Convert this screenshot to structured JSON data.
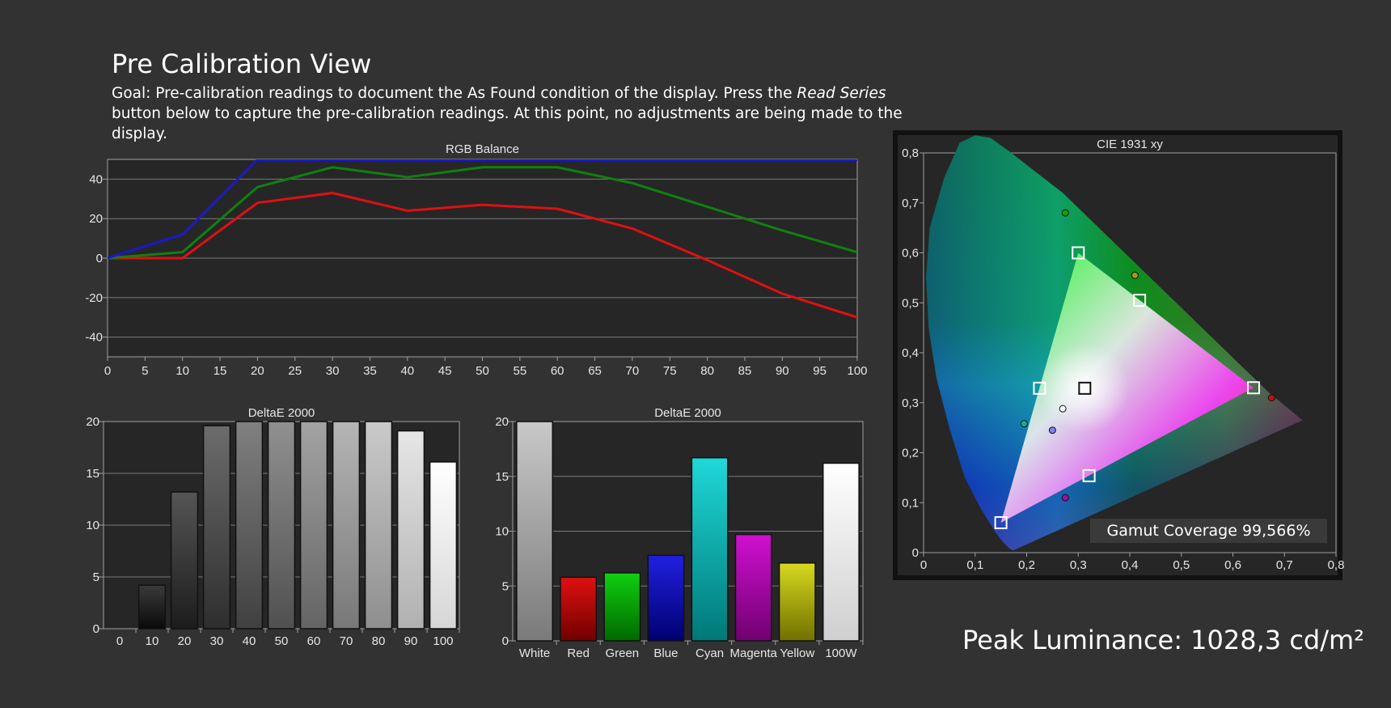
{
  "header": {
    "title": "Pre Calibration View",
    "goal_prefix": "Goal: Pre-calibration readings to document the As Found condition of the display. Press the ",
    "goal_italic": "Read Series",
    "goal_suffix": " button below to capture the pre-calibration readings. At this point, no adjustments are being made to the display."
  },
  "peak_luminance": "Peak Luminance: 1028,3 cd/m²",
  "gamut_coverage": "Gamut Coverage 99,566%",
  "colors": {
    "background": "#323232",
    "plot_bg": "#262626",
    "red": "#e01010",
    "green": "#108010",
    "blue": "#1818d0"
  },
  "chart_data": [
    {
      "id": "rgb",
      "type": "line",
      "title": "RGB Balance",
      "x": [
        0,
        10,
        20,
        30,
        40,
        50,
        60,
        70,
        80,
        90,
        100
      ],
      "xticks": [
        "0",
        "5",
        "10",
        "15",
        "20",
        "25",
        "30",
        "35",
        "40",
        "45",
        "50",
        "55",
        "60",
        "65",
        "70",
        "75",
        "80",
        "85",
        "90",
        "95",
        "100"
      ],
      "yticks": [
        40,
        20,
        0,
        -20,
        -40
      ],
      "ylim": [
        -50,
        50
      ],
      "xlim": [
        0,
        100
      ],
      "grid": true,
      "series": [
        {
          "color": "#e01010",
          "values": [
            0,
            0,
            28,
            33,
            24,
            27,
            25,
            15,
            -1,
            -18,
            -30
          ]
        },
        {
          "color": "#108010",
          "values": [
            0,
            3,
            36,
            46,
            41,
            46,
            46,
            38,
            26,
            14,
            3
          ]
        },
        {
          "color": "#1818d0",
          "values": [
            0,
            12,
            50,
            50,
            50,
            50,
            50,
            50,
            50,
            50,
            50
          ]
        }
      ]
    },
    {
      "id": "grey",
      "type": "bar",
      "title": "DeltaE 2000",
      "categories": [
        "0",
        "10",
        "20",
        "30",
        "40",
        "50",
        "60",
        "70",
        "80",
        "90",
        "100"
      ],
      "values": [
        0,
        4.2,
        13.2,
        19.6,
        20,
        20,
        20,
        20,
        20,
        19.1,
        16.1
      ],
      "ylim": [
        0,
        20
      ],
      "yticks": [
        20,
        15,
        10,
        5,
        0
      ]
    },
    {
      "id": "color",
      "type": "bar",
      "title": "DeltaE 2000",
      "categories": [
        "White",
        "Red",
        "Green",
        "Blue",
        "Cyan",
        "Magenta",
        "Yellow",
        "100W"
      ],
      "values": [
        20,
        5.8,
        6.2,
        7.8,
        16.7,
        9.7,
        7.1,
        16.2
      ],
      "ylim": [
        0,
        20
      ],
      "yticks": [
        20,
        15,
        10,
        5,
        0
      ]
    },
    {
      "id": "cie",
      "type": "scatter",
      "title": "CIE 1931 xy",
      "xticks": [
        "0",
        "0,1",
        "0,2",
        "0,3",
        "0,4",
        "0,5",
        "0,6",
        "0,7",
        "0,8"
      ],
      "yticks": [
        "0,8",
        "0,7",
        "0,6",
        "0,5",
        "0,4",
        "0,3",
        "0,2",
        "0,1",
        "0"
      ],
      "xlim": [
        0,
        0.8
      ],
      "ylim": [
        0,
        0.8
      ],
      "targets": [
        {
          "x": 0.64,
          "y": 0.33
        },
        {
          "x": 0.3,
          "y": 0.6
        },
        {
          "x": 0.15,
          "y": 0.06
        },
        {
          "x": 0.225,
          "y": 0.329
        },
        {
          "x": 0.321,
          "y": 0.154
        },
        {
          "x": 0.419,
          "y": 0.505
        },
        {
          "x": 0.3127,
          "y": 0.329
        }
      ],
      "measured": [
        {
          "x": 0.675,
          "y": 0.31
        },
        {
          "x": 0.275,
          "y": 0.68
        },
        {
          "x": 0.41,
          "y": 0.555
        },
        {
          "x": 0.195,
          "y": 0.258
        },
        {
          "x": 0.275,
          "y": 0.11
        },
        {
          "x": 0.27,
          "y": 0.288
        },
        {
          "x": 0.25,
          "y": 0.245
        }
      ]
    }
  ]
}
